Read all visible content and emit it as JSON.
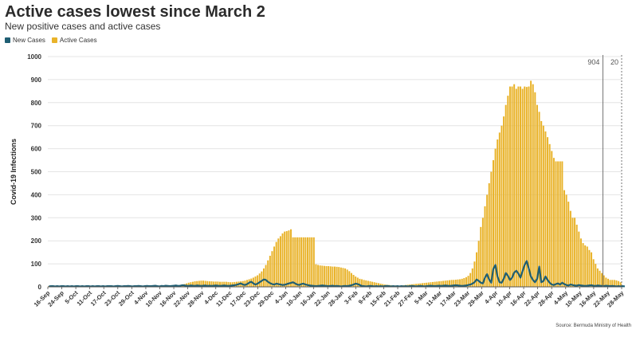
{
  "header": {
    "title": "Active cases lowest since March 2",
    "subtitle": "New positive cases and active cases"
  },
  "legend": {
    "items": [
      {
        "label": "New Cases",
        "color": "#1f5e73"
      },
      {
        "label": "Active Cases",
        "color": "#e9b32a"
      }
    ]
  },
  "footer": {
    "source": "Source: Bermuda Ministry of Health"
  },
  "chart_data": {
    "type": "bar",
    "ylabel": "Covid-19 Infections",
    "xlabel": "",
    "ylim": [
      0,
      1000
    ],
    "yticks": [
      0,
      100,
      200,
      300,
      400,
      500,
      600,
      700,
      800,
      900,
      1000
    ],
    "grid": true,
    "legend_position": "top-left",
    "xtick_labels": [
      "16-Sep",
      "24-Sep",
      "5-Oct",
      "11-Oct",
      "17-Oct",
      "23-Oct",
      "29-Oct",
      "4-Nov",
      "10-Nov",
      "16-Nov",
      "22-Nov",
      "28-Nov",
      "4-Dec",
      "11-Dec",
      "17-Dec",
      "23-Dec",
      "29-Dec",
      "4-Jan",
      "10-Jan",
      "16-Jan",
      "22-Jan",
      "28-Jan",
      "3-Feb",
      "9-Feb",
      "15-Feb",
      "21-Feb",
      "27-Feb",
      "5-Mar",
      "11-Mar",
      "17-Mar",
      "23-Mar",
      "29-Mar",
      "4-Apr",
      "10-Apr",
      "16-Apr",
      "22-Apr",
      "28-Apr",
      "4-May",
      "10-May",
      "16-May",
      "22-May",
      "28-May"
    ],
    "annotations": [
      {
        "label": "904",
        "at_index": 40
      },
      {
        "label": "20",
        "at_index": 41
      }
    ],
    "series": [
      {
        "name": "Active Cases",
        "kind": "bar",
        "color": "#e9b32a",
        "values": [
          3,
          3,
          3,
          3,
          3,
          3,
          3,
          3,
          3,
          3,
          3,
          3,
          3,
          3,
          3,
          3,
          3,
          3,
          3,
          3,
          3,
          3,
          3,
          3,
          3,
          3,
          3,
          3,
          3,
          3,
          3,
          3,
          3,
          3,
          3,
          3,
          3,
          3,
          3,
          3,
          3,
          3,
          3,
          3,
          3,
          3,
          3,
          3,
          3,
          3,
          3,
          3,
          3,
          3,
          3,
          3,
          3,
          3,
          3,
          3,
          4,
          5,
          6,
          8,
          10,
          12,
          15,
          18,
          20,
          22,
          24,
          25,
          26,
          27,
          27,
          26,
          25,
          24,
          24,
          23,
          23,
          23,
          22,
          22,
          22,
          22,
          21,
          20,
          20,
          21,
          22,
          23,
          24,
          25,
          27,
          30,
          33,
          36,
          40,
          45,
          50,
          58,
          67,
          80,
          95,
          115,
          135,
          155,
          175,
          195,
          210,
          220,
          232,
          240,
          242,
          245,
          250,
          215,
          215,
          215,
          215,
          215,
          215,
          215,
          215,
          215,
          215,
          215,
          98,
          95,
          93,
          92,
          91,
          90,
          90,
          89,
          88,
          88,
          87,
          86,
          84,
          82,
          80,
          75,
          68,
          60,
          52,
          45,
          40,
          35,
          33,
          30,
          28,
          26,
          24,
          22,
          20,
          18,
          16,
          14,
          12,
          10,
          9,
          8,
          7,
          6,
          6,
          5,
          5,
          6,
          7,
          8,
          9,
          10,
          11,
          12,
          13,
          14,
          15,
          16,
          17,
          18,
          19,
          20,
          21,
          22,
          23,
          24,
          25,
          26,
          27,
          28,
          29,
          30,
          30,
          31,
          32,
          33,
          35,
          38,
          42,
          48,
          60,
          80,
          110,
          150,
          200,
          260,
          300,
          350,
          400,
          450,
          500,
          550,
          600,
          640,
          670,
          700,
          740,
          790,
          830,
          870,
          870,
          880,
          860,
          870,
          870,
          860,
          870,
          868,
          870,
          895,
          880,
          845,
          790,
          760,
          720,
          700,
          675,
          650,
          620,
          590,
          560,
          545,
          545,
          545,
          545,
          420,
          400,
          370,
          330,
          300,
          300,
          270,
          240,
          210,
          190,
          180,
          175,
          160,
          150,
          120,
          100,
          80,
          70,
          60,
          50,
          40,
          35,
          30,
          30,
          30,
          28,
          25,
          20
        ]
      },
      {
        "name": "New Cases",
        "kind": "line",
        "color": "#1f5e73",
        "values": [
          2,
          3,
          3,
          2,
          3,
          2,
          3,
          3,
          2,
          3,
          2,
          3,
          2,
          3,
          3,
          2,
          3,
          2,
          3,
          3,
          2,
          3,
          2,
          3,
          3,
          2,
          3,
          2,
          3,
          3,
          3,
          2,
          3,
          4,
          3,
          2,
          3,
          3,
          4,
          3,
          2,
          3,
          3,
          4,
          3,
          2,
          3,
          4,
          3,
          3,
          4,
          5,
          3,
          2,
          4,
          3,
          5,
          4,
          3,
          4,
          5,
          6,
          4,
          5,
          7,
          6,
          5,
          4,
          6,
          5,
          4,
          6,
          5,
          4,
          5,
          6,
          4,
          5,
          4,
          5,
          6,
          5,
          4,
          5,
          6,
          5,
          4,
          5,
          6,
          7,
          9,
          12,
          15,
          10,
          8,
          12,
          18,
          22,
          15,
          10,
          14,
          20,
          26,
          32,
          30,
          22,
          16,
          12,
          10,
          14,
          12,
          10,
          8,
          9,
          12,
          15,
          17,
          20,
          15,
          10,
          8,
          12,
          14,
          10,
          8,
          6,
          5,
          4,
          3,
          4,
          5,
          6,
          5,
          4,
          3,
          4,
          5,
          3,
          4,
          3,
          2,
          3,
          4,
          3,
          5,
          7,
          10,
          14,
          12,
          8,
          4,
          3,
          2,
          3,
          4,
          3,
          2,
          3,
          2,
          3,
          2,
          3,
          4,
          3,
          2,
          3,
          2,
          3,
          2,
          3,
          2,
          3,
          2,
          3,
          4,
          3,
          2,
          3,
          4,
          3,
          2,
          3,
          4,
          5,
          4,
          3,
          4,
          5,
          4,
          5,
          6,
          5,
          4,
          5,
          6,
          7,
          6,
          5,
          4,
          5,
          6,
          8,
          10,
          14,
          20,
          32,
          26,
          18,
          15,
          40,
          55,
          32,
          18,
          78,
          95,
          45,
          20,
          18,
          35,
          60,
          48,
          30,
          40,
          62,
          70,
          58,
          40,
          68,
          95,
          112,
          80,
          45,
          30,
          20,
          35,
          88,
          20,
          25,
          45,
          30,
          18,
          10,
          8,
          12,
          15,
          10,
          18,
          12,
          8,
          6,
          10,
          8,
          6,
          5,
          8,
          6,
          5,
          4,
          5,
          6,
          7,
          5,
          4,
          6,
          5,
          4,
          3,
          5,
          4,
          3,
          4,
          3,
          2,
          3,
          2,
          3,
          2
        ]
      }
    ]
  }
}
